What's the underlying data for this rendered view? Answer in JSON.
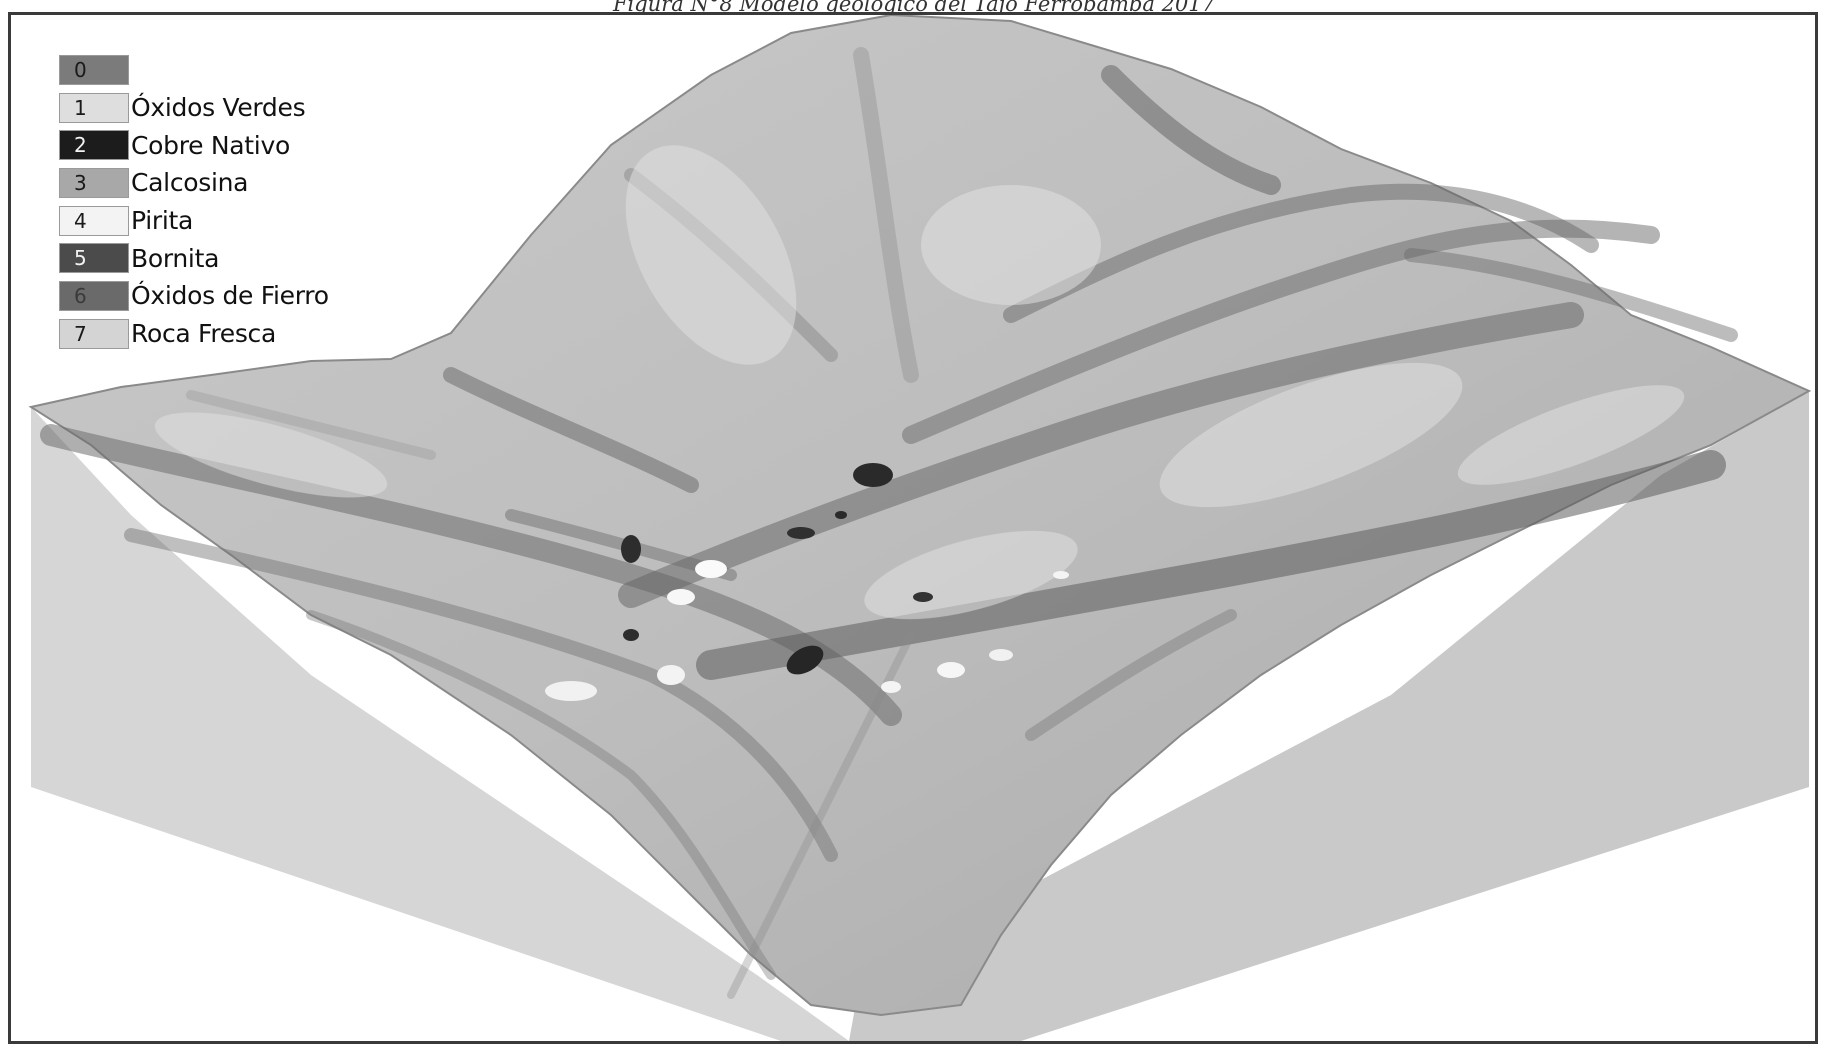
{
  "caption": "Figura N°8 Modelo geológico del Tajo Ferrobamba 2017",
  "legend": {
    "items": [
      {
        "code": "0",
        "label": "",
        "color": "#7b7b7b",
        "text_color": "#1a1a1a"
      },
      {
        "code": "1",
        "label": "Óxidos Verdes",
        "color": "#dedede",
        "text_color": "#1a1a1a"
      },
      {
        "code": "2",
        "label": "Cobre Nativo",
        "color": "#1c1c1c",
        "text_color": "#f2f2f2"
      },
      {
        "code": "3",
        "label": "Calcosina",
        "color": "#a8a8a8",
        "text_color": "#1a1a1a"
      },
      {
        "code": "4",
        "label": "Pirita",
        "color": "#f3f3f3",
        "text_color": "#1a1a1a"
      },
      {
        "code": "5",
        "label": "Bornita",
        "color": "#4b4b4b",
        "text_color": "#f2f2f2"
      },
      {
        "code": "6",
        "label": "Óxidos de Fierro",
        "color": "#6a6a6a",
        "text_color": "#3a3a3a"
      },
      {
        "code": "7",
        "label": "Roca Fresca",
        "color": "#d4d4d4",
        "text_color": "#1a1a1a"
      }
    ]
  },
  "colors": {
    "terrain_base": "#c4c4c4",
    "block_side_light": "#d6d6d6",
    "block_side_dark": "#c9c9c9",
    "ridge_shadow": "#6e6e6e"
  }
}
